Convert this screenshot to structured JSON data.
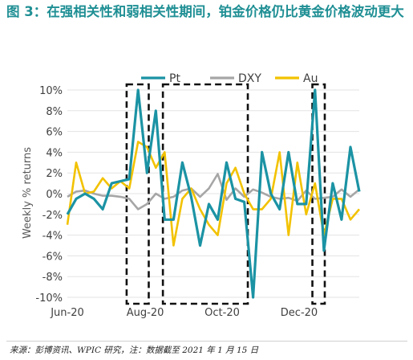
{
  "title": "图 3：在强相关性和弱相关性期间，铂金价格仍比黄金价格波动更大",
  "source": "来源：彭博资讯、WPIC 研究，注：数据截至 2021 年 1 月 15 日",
  "colors": {
    "Pt": "#1b93a4",
    "DXY": "#a6a6a6",
    "Au": "#f2c200"
  },
  "chart_data": {
    "type": "line",
    "ylabel": "Weekly % returns",
    "ylim": [
      -10,
      10
    ],
    "yticks": [
      "10%",
      "8%",
      "6%",
      "4%",
      "2%",
      "0%",
      "-2%",
      "-4%",
      "-6%",
      "-8%",
      "-10%"
    ],
    "ytick_values": [
      10,
      8,
      6,
      4,
      2,
      0,
      -2,
      -4,
      -6,
      -8,
      -10
    ],
    "xticks": [
      "Jun-20",
      "Aug-20",
      "Oct-20",
      "Dec-20"
    ],
    "xtick_positions": [
      0,
      8.8,
      17.5,
      26.2
    ],
    "x": [
      0,
      1,
      2,
      3,
      4,
      5,
      6,
      7,
      8,
      9,
      10,
      11,
      12,
      13,
      14,
      15,
      16,
      17,
      18,
      19,
      20,
      21,
      22,
      23,
      24,
      25,
      26,
      27,
      28,
      29,
      30,
      31,
      32,
      33
    ],
    "legend_position": "top",
    "series": [
      {
        "name": "Pt",
        "values": [
          -2,
          -0.5,
          0,
          -0.5,
          -1.5,
          1,
          1.2,
          1.4,
          10,
          2,
          8,
          -2.5,
          -2.5,
          3,
          -0.3,
          -5,
          -1,
          -2.5,
          3,
          -0.5,
          -0.8,
          -10,
          4,
          0,
          -1.5,
          4,
          -1,
          -1,
          10,
          -5.5,
          1,
          -2.5,
          4.5,
          0.2
        ]
      },
      {
        "name": "DXY",
        "values": [
          -0.3,
          0.2,
          0.3,
          0,
          -0.2,
          -0.2,
          -0.3,
          -0.5,
          -1.5,
          -1,
          0,
          -0.5,
          -0.3,
          0.3,
          0.5,
          -0.3,
          0.5,
          1.9,
          -0.6,
          0.5,
          -0.3,
          0.4,
          0.1,
          -0.3,
          -0.5,
          -0.4,
          -0.7,
          0.3,
          -0.5,
          -0.4,
          -0.3,
          0.4,
          -0.3,
          0.4
        ]
      },
      {
        "name": "Au",
        "values": [
          -3,
          3,
          0,
          0.2,
          1.5,
          0.5,
          1.2,
          0.5,
          5,
          4.5,
          2.5,
          4,
          -5,
          -0.5,
          0.5,
          -1.5,
          -3,
          -4,
          1,
          2.5,
          0,
          -1.5,
          -1.5,
          -0.5,
          4,
          -4,
          3,
          -2,
          1,
          -4,
          -0.5,
          -0.5,
          -2.5,
          -1.5
        ]
      }
    ],
    "annotations": [
      {
        "kind": "dashed-box",
        "x_from": 6.7,
        "x_to": 9.2
      },
      {
        "kind": "dashed-box",
        "x_from": 10.8,
        "x_to": 20.4
      },
      {
        "kind": "dashed-box",
        "x_from": 27.7,
        "x_to": 29.1
      }
    ]
  }
}
